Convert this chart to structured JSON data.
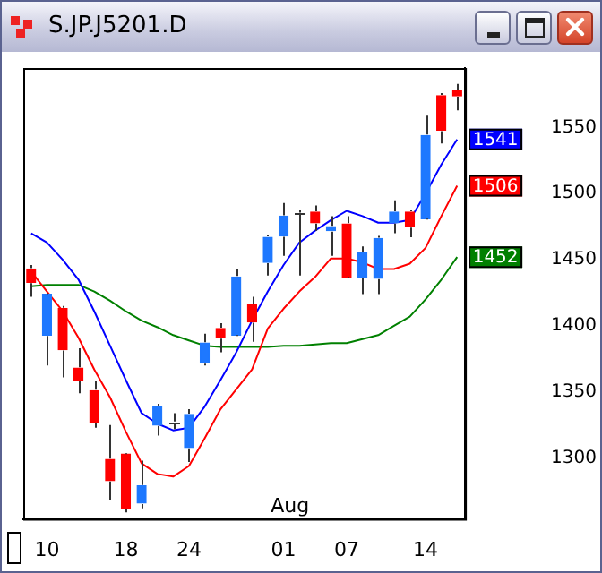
{
  "chart_data": {
    "type": "candlestick",
    "title": "S.JP.J5201.D",
    "categories": [
      null,
      "10",
      null,
      null,
      null,
      null,
      "18",
      null,
      null,
      null,
      "24",
      null,
      null,
      null,
      null,
      null,
      "01",
      null,
      null,
      null,
      "07",
      null,
      null,
      null,
      null,
      "14",
      null,
      null
    ],
    "ohlc": [
      [
        1443,
        1446,
        1422,
        1433
      ],
      [
        1393,
        1424,
        1370,
        1424
      ],
      [
        1413,
        1415,
        1361,
        1382
      ],
      [
        1368,
        1383,
        1349,
        1359
      ],
      [
        1351,
        1358,
        1323,
        1327
      ],
      [
        1299,
        1325,
        1268,
        1283
      ],
      [
        1303,
        1303,
        1259,
        1262
      ],
      [
        1266,
        1298,
        1262,
        1279
      ],
      [
        1325,
        1341,
        1317,
        1339
      ],
      [
        1327,
        1334,
        1322,
        1327
      ],
      [
        1308,
        1337,
        1297,
        1333
      ],
      [
        1372,
        1394,
        1370,
        1387
      ],
      [
        1398,
        1402,
        1380,
        1391
      ],
      [
        1393,
        1443,
        1393,
        1437
      ],
      [
        1416,
        1422,
        1388,
        1403
      ],
      [
        1448,
        1469,
        1438,
        1467
      ],
      [
        1468,
        1493,
        1453,
        1483
      ],
      [
        1485,
        1488,
        1438,
        1485
      ],
      [
        1486,
        1491,
        1472,
        1478
      ],
      [
        1472,
        1483,
        1453,
        1475
      ],
      [
        1477,
        1483,
        1437,
        1437
      ],
      [
        1437,
        1460,
        1424,
        1455
      ],
      [
        1436,
        1468,
        1424,
        1466
      ],
      [
        1478,
        1495,
        1470,
        1486
      ],
      [
        1486,
        1488,
        1467,
        1475
      ],
      [
        1481,
        1559,
        1481,
        1544
      ],
      [
        1574,
        1576,
        1538,
        1548
      ],
      [
        1578,
        1583,
        1563,
        1574
      ]
    ],
    "colors": [
      "#ff0000",
      "#1e78ff",
      "#ff0000",
      "#ff0000",
      "#ff0000",
      "#ff0000",
      "#ff0000",
      "#1e78ff",
      "#1e78ff",
      "#333333",
      "#1e78ff",
      "#1e78ff",
      "#ff0000",
      "#1e78ff",
      "#ff0000",
      "#1e78ff",
      "#1e78ff",
      "#333333",
      "#ff0000",
      "#1e78ff",
      "#ff0000",
      "#1e78ff",
      "#1e78ff",
      "#1e78ff",
      "#ff0000",
      "#1e78ff",
      "#ff0000",
      "#ff0000"
    ],
    "series": [
      {
        "type": "line",
        "color": "#0000ff",
        "values": [
          1470,
          1463,
          1450,
          1435,
          1411,
          1385,
          1359,
          1334,
          1326,
          1321,
          1323,
          1339,
          1359,
          1380,
          1404,
          1426,
          1446,
          1463,
          1472,
          1480,
          1487,
          1483,
          1478,
          1478,
          1480,
          1500,
          1522,
          1541
        ],
        "value_labels": [
          null,
          null,
          null,
          null,
          null,
          null,
          null,
          null,
          null,
          null,
          null,
          null,
          null,
          null,
          null,
          null,
          null,
          null,
          null,
          null,
          null,
          null,
          null,
          null,
          null,
          null,
          null,
          "1541"
        ]
      },
      {
        "type": "line",
        "color": "#ff0000",
        "values": [
          1441,
          1426,
          1411,
          1391,
          1367,
          1346,
          1320,
          1296,
          1288,
          1286,
          1294,
          1315,
          1337,
          1352,
          1367,
          1398,
          1413,
          1426,
          1437,
          1451,
          1451,
          1448,
          1443,
          1443,
          1447,
          1459,
          1483,
          1506
        ],
        "value_labels": [
          null,
          null,
          null,
          null,
          null,
          null,
          null,
          null,
          null,
          null,
          null,
          null,
          null,
          null,
          null,
          null,
          null,
          null,
          null,
          null,
          null,
          null,
          null,
          null,
          null,
          null,
          null,
          "1506"
        ]
      },
      {
        "type": "line",
        "color": "#008000",
        "values": [
          1430,
          1431,
          1431,
          1431,
          1426,
          1419,
          1411,
          1404,
          1399,
          1393,
          1389,
          1385,
          1384,
          1384,
          1384,
          1384,
          1385,
          1385,
          1386,
          1387,
          1387,
          1390,
          1393,
          1400,
          1407,
          1420,
          1435,
          1452
        ],
        "value_labels": [
          null,
          null,
          null,
          null,
          null,
          null,
          null,
          null,
          null,
          null,
          null,
          null,
          null,
          null,
          null,
          null,
          null,
          null,
          null,
          null,
          null,
          null,
          null,
          null,
          null,
          null,
          null,
          "1452"
        ]
      }
    ],
    "ylim": [
      1254,
      1595
    ],
    "yticks": [
      1300,
      1350,
      1400,
      1450,
      1500,
      1550
    ],
    "annotations": [
      "Aug"
    ],
    "legend": false
  }
}
